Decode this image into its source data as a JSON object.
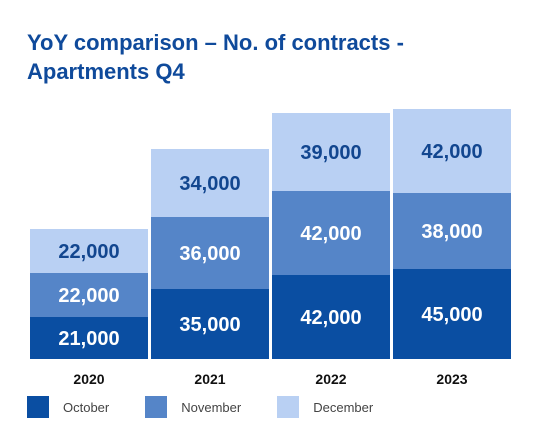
{
  "title_lines": [
    "YoY comparison – No. of contracts -",
    "Apartments Q4"
  ],
  "colors": {
    "October": "#0a4ea2",
    "November": "#5585c8",
    "December": "#b9d0f3",
    "dark_text": "#12468f",
    "light_text": "#ffffff"
  },
  "chart_data": {
    "type": "bar",
    "stacked": true,
    "title": "YoY comparison – No. of contracts - Apartments Q4",
    "categories": [
      "2020",
      "2021",
      "2022",
      "2023"
    ],
    "series": [
      {
        "name": "October",
        "values": [
          21000,
          35000,
          42000,
          45000
        ],
        "labels": [
          "21,000",
          "35,000",
          "42,000",
          "45,000"
        ]
      },
      {
        "name": "November",
        "values": [
          22000,
          36000,
          42000,
          38000
        ],
        "labels": [
          "22,000",
          "36,000",
          "42,000",
          "38,000"
        ]
      },
      {
        "name": "December",
        "values": [
          22000,
          34000,
          39000,
          42000
        ],
        "labels": [
          "22,000",
          "34,000",
          "39,000",
          "42,000"
        ]
      }
    ],
    "grid": false,
    "legend_position": "bottom-left"
  }
}
